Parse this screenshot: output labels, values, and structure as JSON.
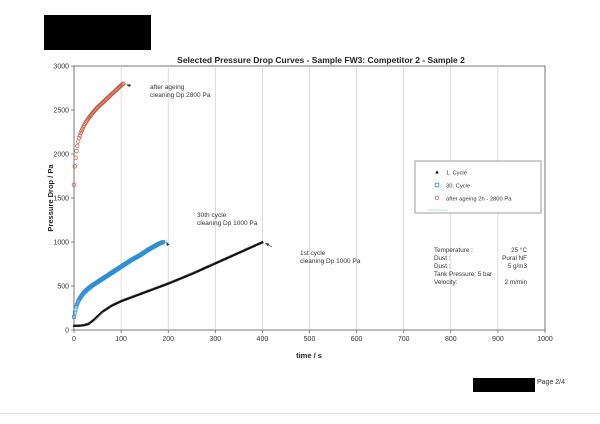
{
  "page": {
    "footer_text": "Page 2/4"
  },
  "chart_data": {
    "type": "scatter",
    "title": "Selected Pressure Drop Curves - Sample FW3: Competitor 2 - Sample 2",
    "xlabel": "time / s",
    "ylabel": "Pressure Drop / Pa",
    "xlim": [
      0,
      1000
    ],
    "ylim": [
      0,
      3000
    ],
    "xticks": [
      0,
      100,
      200,
      300,
      400,
      500,
      600,
      700,
      800,
      900,
      1000
    ],
    "yticks": [
      0,
      500,
      1000,
      1500,
      2000,
      2500,
      3000
    ],
    "grid": "vertical",
    "legend_position": "right",
    "legend": [
      "1. Cycle",
      "30. Cycle",
      "after ageing 2h - 2800 Pa"
    ],
    "series": [
      {
        "name": "1. Cycle",
        "marker": "triangle",
        "color": "#111111",
        "x": [
          0,
          10,
          20,
          30,
          40,
          50,
          60,
          80,
          100,
          120,
          150,
          200,
          250,
          300,
          350,
          400
        ],
        "y": [
          50,
          50,
          55,
          70,
          110,
          160,
          210,
          280,
          330,
          370,
          430,
          530,
          640,
          760,
          880,
          1000
        ]
      },
      {
        "name": "30. Cycle",
        "marker": "square",
        "color": "#2e8fd6",
        "x": [
          0,
          2,
          5,
          10,
          15,
          20,
          30,
          40,
          60,
          80,
          100,
          120,
          140,
          160,
          180,
          190
        ],
        "y": [
          150,
          210,
          270,
          340,
          380,
          420,
          470,
          510,
          580,
          650,
          720,
          790,
          850,
          920,
          980,
          1000
        ]
      },
      {
        "name": "after ageing 2h - 2800 Pa",
        "marker": "circle",
        "color": "#c8553a",
        "x": [
          0,
          1,
          2,
          4,
          6,
          8,
          10,
          15,
          20,
          25,
          30,
          40,
          50,
          60,
          70,
          80,
          90,
          100,
          105
        ],
        "y": [
          1650,
          1790,
          1880,
          1980,
          2060,
          2120,
          2170,
          2250,
          2310,
          2360,
          2400,
          2470,
          2530,
          2580,
          2630,
          2680,
          2730,
          2780,
          2800
        ]
      }
    ],
    "annotations": [
      {
        "lines": [
          "after ageing",
          "cleaning Dp 2800 Pa"
        ],
        "x": 105,
        "y": 2800
      },
      {
        "lines": [
          "30th cycle",
          "cleaning Dp 1000 Pa"
        ],
        "x": 190,
        "y": 1000
      },
      {
        "lines": [
          "1st cycle",
          "cleaning Dp 1000 Pa"
        ],
        "x": 400,
        "y": 1000
      }
    ],
    "info_box": [
      {
        "label": "Temperature :",
        "value": "25 °C"
      },
      {
        "label": "Dust :",
        "value": "Pural NF"
      },
      {
        "label": "Dust :",
        "value": "5 g/m3"
      },
      {
        "label": "Tank Pressure: 5 bar",
        "value": ""
      },
      {
        "label": "Velocity:",
        "value": "2 m/min"
      }
    ]
  }
}
